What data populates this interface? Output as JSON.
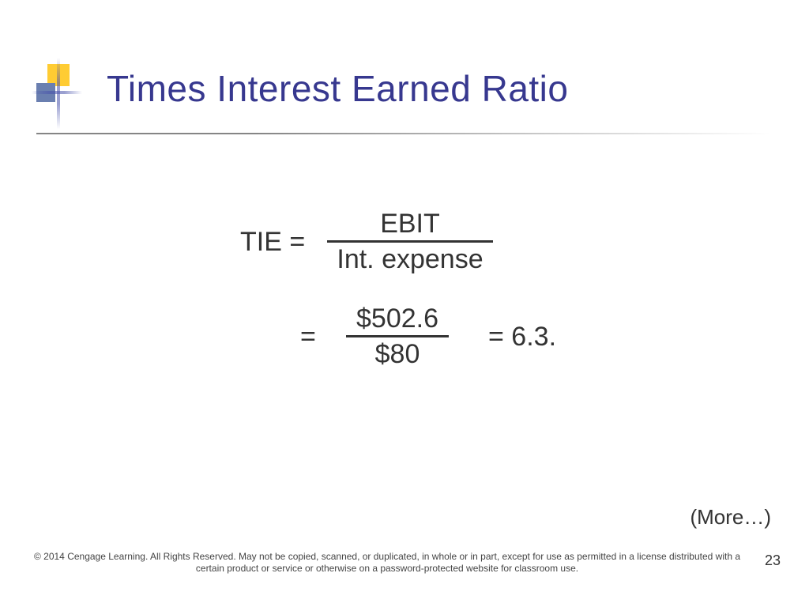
{
  "title": {
    "text": "Times Interest Earned Ratio",
    "color": "#37388f",
    "fontsize": 46
  },
  "decoration": {
    "square_yellow": "#ffcc33",
    "square_blue": "#6a7fb0",
    "cross_color": "#4650aa"
  },
  "formula": {
    "font_color": "#333333",
    "fontsize": 34,
    "line1": {
      "lhs": "TIE =",
      "numerator": "EBIT",
      "denominator": "Int. expense"
    },
    "line2": {
      "lhs": "=",
      "numerator": "$502.6",
      "denominator": "$80",
      "result": "= 6.3."
    }
  },
  "more_label": "(More…)",
  "copyright": "© 2014 Cengage Learning. All Rights Reserved. May not be copied, scanned, or duplicated, in whole or in part, except for use as permitted in a license distributed with a certain product or service or otherwise on a password-protected website for classroom use.",
  "page_number": "23",
  "background_color": "#ffffff"
}
